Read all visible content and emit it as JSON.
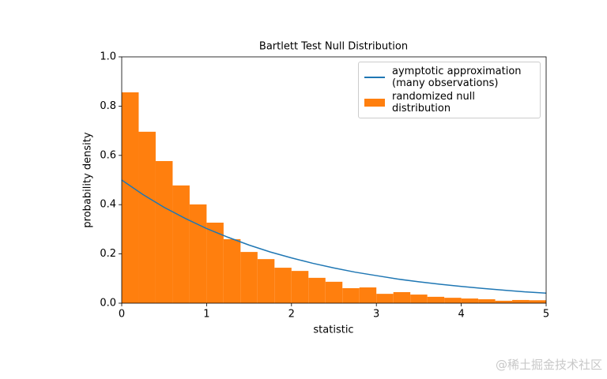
{
  "chart_data": {
    "type": "histogram",
    "title": "Bartlett Test Null Distribution",
    "x_label": "statistic",
    "y_label": "probability density",
    "bins": [
      0,
      0.2,
      0.4,
      0.6,
      0.8,
      1.0,
      1.2,
      1.4,
      1.6,
      1.8,
      2.0,
      2.2,
      2.4,
      2.6,
      2.8,
      3.0,
      3.2,
      3.4,
      3.6,
      3.8,
      4.0,
      4.2,
      4.4,
      4.6,
      4.8,
      5.0
    ],
    "series": [
      {
        "name": "aymptotic approximation\n(many observations)",
        "type": "line",
        "color": "#1f77b4",
        "x": [
          0,
          0.25,
          0.5,
          0.75,
          1,
          1.25,
          1.5,
          1.75,
          2,
          2.25,
          2.5,
          2.75,
          3,
          3.25,
          3.5,
          3.75,
          4,
          4.25,
          4.5,
          4.75,
          5
        ],
        "values": [
          0.5,
          0.441,
          0.389,
          0.344,
          0.303,
          0.268,
          0.236,
          0.208,
          0.184,
          0.162,
          0.143,
          0.126,
          0.112,
          0.098,
          0.087,
          0.077,
          0.068,
          0.06,
          0.053,
          0.046,
          0.041
        ]
      },
      {
        "name": "randomized null distribution",
        "type": "histogram",
        "color": "#ff7f0e",
        "values": [
          0.856,
          0.696,
          0.577,
          0.478,
          0.401,
          0.327,
          0.26,
          0.208,
          0.179,
          0.144,
          0.131,
          0.103,
          0.087,
          0.061,
          0.064,
          0.038,
          0.045,
          0.035,
          0.026,
          0.022,
          0.019,
          0.016,
          0.01,
          0.013,
          0.012
        ]
      }
    ],
    "xlim": [
      0,
      5
    ],
    "ylim": [
      0,
      1.0
    ],
    "xticks": [
      0,
      1,
      2,
      3,
      4,
      5
    ],
    "yticks": [
      {
        "value": 0,
        "label": "0.0"
      },
      0.2,
      0.4,
      0.6,
      0.8,
      {
        "value": 1.0,
        "label": "1.0"
      }
    ],
    "legend": "upper right"
  },
  "watermark": "@稀土掘金技术社区"
}
